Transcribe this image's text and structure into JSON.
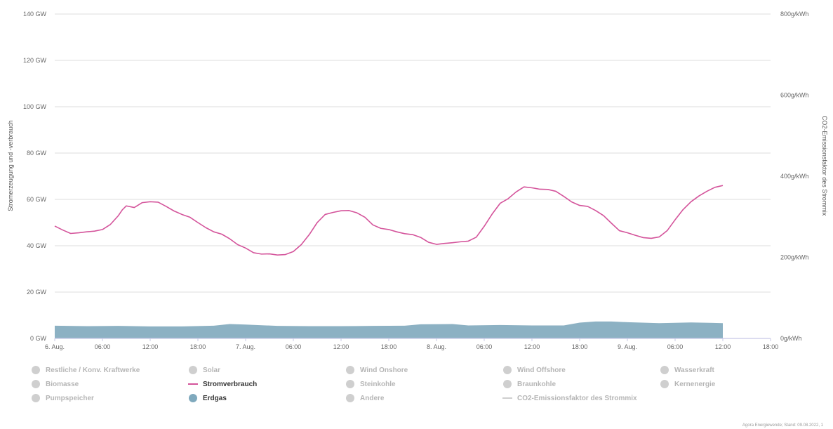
{
  "chart_data": {
    "type": "area",
    "ylabel": "Stromerzeugung und -verbrauch",
    "y2label": "CO2-Emissionsfaktor des Strommix",
    "ylim": [
      0,
      140
    ],
    "y2lim": [
      0,
      800
    ],
    "y_ticks": [
      "0 GW",
      "20 GW",
      "40 GW",
      "60 GW",
      "80 GW",
      "100 GW",
      "120 GW",
      "140 GW"
    ],
    "y2_ticks": [
      "0g/kWh",
      "200g/kWh",
      "400g/kWh",
      "600g/kWh",
      "800g/kWh"
    ],
    "x_ticks": [
      "6. Aug.",
      "06:00",
      "12:00",
      "18:00",
      "7. Aug.",
      "06:00",
      "12:00",
      "18:00",
      "8. Aug.",
      "06:00",
      "12:00",
      "18:00",
      "9. Aug.",
      "06:00",
      "12:00",
      "18:00"
    ],
    "x_range_hours": [
      0,
      90
    ],
    "grid": true,
    "legend_position": "bottom",
    "series": [
      {
        "name": "Stromverbrauch",
        "type": "line",
        "color": "#d4549b",
        "x_hours": [
          0,
          1,
          2,
          3,
          4,
          5,
          6,
          7,
          8,
          8.5,
          9,
          10,
          11,
          12,
          13,
          14,
          15,
          16,
          17,
          18,
          19,
          20,
          21,
          22,
          23,
          24,
          25,
          26,
          27,
          28,
          29,
          30,
          31,
          32,
          33,
          34,
          35,
          36,
          37,
          38,
          39,
          40,
          41,
          42,
          43,
          44,
          45,
          46,
          47,
          48,
          49,
          50,
          51,
          52,
          53,
          54,
          55,
          56,
          57,
          58,
          59,
          60,
          61,
          62,
          63,
          64,
          65,
          66,
          67,
          68,
          69,
          70,
          71,
          72,
          73,
          74,
          75,
          76,
          77,
          78,
          79,
          80,
          81,
          82,
          83,
          84
        ],
        "values": [
          48.5,
          46.8,
          45.3,
          45.6,
          46.0,
          46.3,
          47.0,
          49.2,
          53.0,
          55.5,
          57.2,
          56.5,
          58.6,
          59.0,
          58.8,
          57.0,
          55.0,
          53.5,
          52.3,
          50.0,
          47.8,
          46.0,
          45.0,
          43.0,
          40.5,
          39.0,
          37.0,
          36.4,
          36.5,
          36.0,
          36.2,
          37.5,
          40.5,
          44.8,
          50.0,
          53.5,
          54.4,
          55.1,
          55.2,
          54.2,
          52.3,
          49.0,
          47.5,
          47.0,
          46.0,
          45.2,
          44.8,
          43.6,
          41.5,
          40.6,
          41.0,
          41.3,
          41.7,
          42.0,
          43.7,
          48.4,
          53.7,
          58.3,
          60.3,
          63.2,
          65.4,
          65.0,
          64.4,
          64.3,
          63.5,
          61.3,
          58.9,
          57.4,
          57.0,
          55.2,
          53.0,
          49.7,
          46.5,
          45.6,
          44.5,
          43.5,
          43.2,
          43.8,
          46.5,
          51.2,
          55.6,
          59.0,
          61.5,
          63.5,
          65.2,
          66.0
        ]
      },
      {
        "name": "Erdgas",
        "type": "area",
        "color": "#7fa9bd",
        "x_hours": [
          0,
          4,
          8,
          12,
          16,
          20,
          22,
          24,
          28,
          32,
          36,
          40,
          44,
          46,
          50,
          52,
          56,
          60,
          64,
          66,
          68,
          70,
          72,
          76,
          80,
          84
        ],
        "values": [
          5.5,
          5.3,
          5.4,
          5.2,
          5.2,
          5.5,
          6.2,
          6.0,
          5.4,
          5.3,
          5.3,
          5.4,
          5.5,
          6.1,
          6.2,
          5.6,
          5.8,
          5.6,
          5.6,
          6.8,
          7.3,
          7.3,
          7.0,
          6.6,
          6.9,
          6.6
        ]
      }
    ]
  },
  "legend": {
    "rows": [
      [
        {
          "label": "Restliche / Konv. Kraftwerke",
          "marker": "dot",
          "color": "#cfcfcf",
          "active": false
        },
        {
          "label": "Solar",
          "marker": "dot",
          "color": "#cfcfcf",
          "active": false
        },
        {
          "label": "Wind Onshore",
          "marker": "dot",
          "color": "#cfcfcf",
          "active": false
        },
        {
          "label": "Wind Offshore",
          "marker": "dot",
          "color": "#cfcfcf",
          "active": false
        },
        {
          "label": "Wasserkraft",
          "marker": "dot",
          "color": "#cfcfcf",
          "active": false
        }
      ],
      [
        {
          "label": "Biomasse",
          "marker": "dot",
          "color": "#cfcfcf",
          "active": false
        },
        {
          "label": "Stromverbrauch",
          "marker": "line",
          "color": "#d4549b",
          "active": true
        },
        {
          "label": "Steinkohle",
          "marker": "dot",
          "color": "#cfcfcf",
          "active": false
        },
        {
          "label": "Braunkohle",
          "marker": "dot",
          "color": "#cfcfcf",
          "active": false
        },
        {
          "label": "Kernenergie",
          "marker": "dot",
          "color": "#cfcfcf",
          "active": false
        }
      ],
      [
        {
          "label": "Pumpspeicher",
          "marker": "dot",
          "color": "#cfcfcf",
          "active": false
        },
        {
          "label": "Erdgas",
          "marker": "dot",
          "color": "#7fa9bd",
          "active": true
        },
        {
          "label": "Andere",
          "marker": "dot",
          "color": "#cfcfcf",
          "active": false
        },
        {
          "label": "CO2-Emissionsfaktor des Strommix",
          "marker": "line",
          "color": "#cfcfcf",
          "active": false
        }
      ]
    ]
  },
  "credit": "Agora Energiewende; Stand: 09.08.2022, 1"
}
